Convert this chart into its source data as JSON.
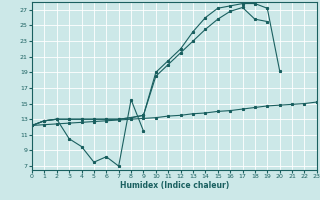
{
  "bg_color": "#cce8e8",
  "grid_color": "#ffffff",
  "line_color": "#1a6060",
  "xlabel": "Humidex (Indice chaleur)",
  "xlim": [
    0,
    23
  ],
  "ylim": [
    6.5,
    28
  ],
  "yticks": [
    7,
    9,
    11,
    13,
    15,
    17,
    19,
    21,
    23,
    25,
    27
  ],
  "xticks": [
    0,
    1,
    2,
    3,
    4,
    5,
    6,
    7,
    8,
    9,
    10,
    11,
    12,
    13,
    14,
    15,
    16,
    17,
    18,
    19,
    20,
    21,
    22,
    23
  ],
  "line1_x": [
    0,
    1,
    2,
    3,
    4,
    5,
    6,
    7,
    8,
    9,
    10,
    11,
    12,
    13,
    14,
    15,
    16,
    17,
    18,
    19,
    20
  ],
  "line1_y": [
    12.2,
    12.8,
    13.0,
    13.0,
    13.0,
    13.0,
    13.0,
    13.0,
    13.2,
    13.5,
    19.0,
    20.5,
    22.0,
    24.2,
    26.0,
    27.2,
    27.5,
    27.8,
    27.8,
    27.2,
    19.2
  ],
  "line2_x": [
    0,
    1,
    2,
    3,
    4,
    5,
    6,
    7,
    8,
    9,
    10,
    11,
    12,
    13,
    14,
    15,
    16,
    17,
    18,
    19,
    20,
    21,
    22,
    23
  ],
  "line2_y": [
    12.2,
    12.8,
    13.0,
    13.0,
    13.0,
    13.0,
    13.0,
    13.0,
    13.2,
    13.5,
    18.5,
    20.0,
    21.5,
    23.0,
    24.5,
    25.8,
    26.8,
    27.3,
    25.8,
    25.5,
    null,
    null,
    null,
    15.2
  ],
  "line3_x": [
    0,
    1,
    2,
    3,
    4,
    5,
    6,
    7,
    8,
    9,
    10,
    11,
    12,
    13,
    14,
    15,
    16,
    17,
    18,
    19,
    20,
    21,
    22,
    23
  ],
  "line3_y": [
    12.2,
    12.3,
    12.4,
    12.5,
    12.6,
    12.7,
    12.8,
    12.9,
    13.0,
    13.1,
    13.2,
    13.4,
    13.5,
    13.7,
    13.8,
    14.0,
    14.1,
    14.3,
    14.5,
    14.7,
    14.8,
    14.9,
    15.0,
    15.2
  ],
  "line4_x": [
    0,
    1,
    2,
    3,
    4,
    5,
    6,
    7,
    8,
    9
  ],
  "line4_y": [
    12.2,
    12.8,
    13.0,
    10.5,
    9.5,
    7.5,
    8.2,
    7.0,
    15.5,
    11.5
  ]
}
